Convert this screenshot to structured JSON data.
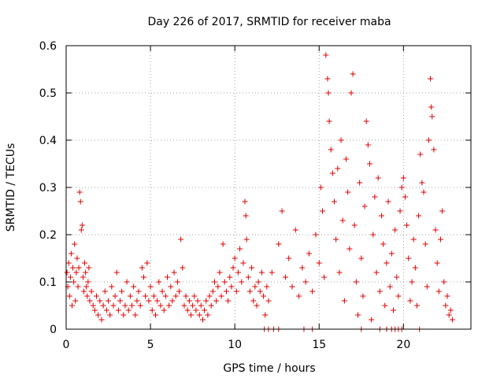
{
  "chart_data": {
    "type": "scatter",
    "title": "Day 226 of 2017, SRMTID for receiver maba",
    "xlabel": "GPS time / hours",
    "ylabel": "SRMTID / TECUs",
    "xlim": [
      0,
      24
    ],
    "ylim": [
      0,
      0.6
    ],
    "xticks": [
      0,
      5,
      10,
      15,
      20
    ],
    "yticks": [
      0,
      0.1,
      0.2,
      0.3,
      0.4,
      0.5,
      0.6
    ],
    "xtick_labels": [
      "0",
      "5",
      "10",
      "15",
      "20"
    ],
    "ytick_labels": [
      "0",
      "0.1",
      "0.2",
      "0.3",
      "0.4",
      "0.5",
      "0.6"
    ],
    "grid": true,
    "marker": "+",
    "color": "#e00000",
    "series": [
      {
        "points": [
          [
            0.05,
            0.12
          ],
          [
            0.1,
            0.09
          ],
          [
            0.15,
            0.14
          ],
          [
            0.2,
            0.07
          ],
          [
            0.25,
            0.11
          ],
          [
            0.3,
            0.16
          ],
          [
            0.35,
            0.05
          ],
          [
            0.4,
            0.13
          ],
          [
            0.45,
            0.1
          ],
          [
            0.5,
            0.18
          ],
          [
            0.55,
            0.06
          ],
          [
            0.6,
            0.12
          ],
          [
            0.65,
            0.15
          ],
          [
            0.7,
            0.09
          ],
          [
            0.75,
            0.13
          ],
          [
            0.8,
            0.29
          ],
          [
            0.85,
            0.27
          ],
          [
            0.9,
            0.21
          ],
          [
            0.95,
            0.22
          ],
          [
            1.0,
            0.11
          ],
          [
            1.05,
            0.08
          ],
          [
            1.1,
            0.14
          ],
          [
            1.15,
            0.12
          ],
          [
            1.2,
            0.09
          ],
          [
            1.25,
            0.07
          ],
          [
            1.3,
            0.1
          ],
          [
            1.35,
            0.13
          ],
          [
            1.4,
            0.06
          ],
          [
            1.5,
            0.08
          ],
          [
            1.6,
            0.05
          ],
          [
            1.7,
            0.04
          ],
          [
            1.8,
            0.07
          ],
          [
            1.9,
            0.03
          ],
          [
            2.0,
            0.06
          ],
          [
            2.1,
            0.02
          ],
          [
            2.2,
            0.05
          ],
          [
            2.3,
            0.08
          ],
          [
            2.4,
            0.04
          ],
          [
            2.5,
            0.06
          ],
          [
            2.6,
            0.03
          ],
          [
            2.7,
            0.09
          ],
          [
            2.8,
            0.05
          ],
          [
            2.9,
            0.07
          ],
          [
            3.0,
            0.12
          ],
          [
            3.1,
            0.04
          ],
          [
            3.2,
            0.06
          ],
          [
            3.3,
            0.08
          ],
          [
            3.4,
            0.03
          ],
          [
            3.5,
            0.05
          ],
          [
            3.6,
            0.1
          ],
          [
            3.7,
            0.04
          ],
          [
            3.8,
            0.07
          ],
          [
            3.9,
            0.05
          ],
          [
            4.0,
            0.09
          ],
          [
            4.1,
            0.03
          ],
          [
            4.2,
            0.06
          ],
          [
            4.3,
            0.08
          ],
          [
            4.4,
            0.05
          ],
          [
            4.5,
            0.13
          ],
          [
            4.6,
            0.11
          ],
          [
            4.7,
            0.07
          ],
          [
            4.8,
            0.14
          ],
          [
            4.9,
            0.06
          ],
          [
            5.0,
            0.09
          ],
          [
            5.1,
            0.04
          ],
          [
            5.2,
            0.07
          ],
          [
            5.3,
            0.03
          ],
          [
            5.4,
            0.06
          ],
          [
            5.5,
            0.1
          ],
          [
            5.6,
            0.05
          ],
          [
            5.7,
            0.08
          ],
          [
            5.8,
            0.04
          ],
          [
            5.9,
            0.07
          ],
          [
            6.0,
            0.11
          ],
          [
            6.1,
            0.05
          ],
          [
            6.2,
            0.09
          ],
          [
            6.3,
            0.06
          ],
          [
            6.4,
            0.12
          ],
          [
            6.5,
            0.07
          ],
          [
            6.6,
            0.1
          ],
          [
            6.7,
            0.08
          ],
          [
            6.8,
            0.19
          ],
          [
            6.9,
            0.13
          ],
          [
            7.0,
            0.05
          ],
          [
            7.1,
            0.07
          ],
          [
            7.2,
            0.04
          ],
          [
            7.3,
            0.06
          ],
          [
            7.4,
            0.03
          ],
          [
            7.5,
            0.05
          ],
          [
            7.6,
            0.07
          ],
          [
            7.7,
            0.04
          ],
          [
            7.8,
            0.06
          ],
          [
            7.9,
            0.03
          ],
          [
            8.0,
            0.05
          ],
          [
            8.1,
            0.02
          ],
          [
            8.2,
            0.04
          ],
          [
            8.3,
            0.06
          ],
          [
            8.4,
            0.03
          ],
          [
            8.5,
            0.07
          ],
          [
            8.6,
            0.05
          ],
          [
            8.7,
            0.08
          ],
          [
            8.8,
            0.1
          ],
          [
            8.9,
            0.06
          ],
          [
            9.0,
            0.09
          ],
          [
            9.1,
            0.12
          ],
          [
            9.2,
            0.07
          ],
          [
            9.3,
            0.18
          ],
          [
            9.4,
            0.1
          ],
          [
            9.5,
            0.08
          ],
          [
            9.6,
            0.06
          ],
          [
            9.7,
            0.11
          ],
          [
            9.8,
            0.09
          ],
          [
            9.9,
            0.13
          ],
          [
            10.0,
            0.15
          ],
          [
            10.1,
            0.08
          ],
          [
            10.2,
            0.12
          ],
          [
            10.3,
            0.17
          ],
          [
            10.4,
            0.1
          ],
          [
            10.5,
            0.14
          ],
          [
            10.6,
            0.27
          ],
          [
            10.65,
            0.24
          ],
          [
            10.7,
            0.19
          ],
          [
            10.8,
            0.11
          ],
          [
            10.9,
            0.08
          ],
          [
            11.0,
            0.13
          ],
          [
            11.1,
            0.06
          ],
          [
            11.2,
            0.09
          ],
          [
            11.3,
            0.05
          ],
          [
            11.4,
            0.1
          ],
          [
            11.5,
            0.08
          ],
          [
            11.6,
            0.12
          ],
          [
            11.7,
            0.07
          ],
          [
            11.8,
            0.03
          ],
          [
            11.9,
            0.09
          ],
          [
            12.0,
            0.06
          ],
          [
            12.2,
            0.12
          ],
          [
            12.6,
            0.18
          ],
          [
            12.8,
            0.25
          ],
          [
            13.0,
            0.11
          ],
          [
            13.2,
            0.15
          ],
          [
            13.4,
            0.09
          ],
          [
            13.6,
            0.21
          ],
          [
            13.8,
            0.07
          ],
          [
            14.0,
            0.13
          ],
          [
            14.2,
            0.1
          ],
          [
            14.4,
            0.16
          ],
          [
            14.6,
            0.08
          ],
          [
            14.8,
            0.2
          ],
          [
            15.0,
            0.14
          ],
          [
            15.1,
            0.3
          ],
          [
            15.2,
            0.25
          ],
          [
            15.3,
            0.11
          ],
          [
            15.4,
            0.58
          ],
          [
            15.5,
            0.53
          ],
          [
            15.55,
            0.5
          ],
          [
            15.6,
            0.44
          ],
          [
            15.7,
            0.38
          ],
          [
            15.8,
            0.33
          ],
          [
            15.9,
            0.27
          ],
          [
            16.0,
            0.19
          ],
          [
            16.1,
            0.34
          ],
          [
            16.2,
            0.12
          ],
          [
            16.3,
            0.4
          ],
          [
            16.4,
            0.23
          ],
          [
            16.5,
            0.06
          ],
          [
            16.6,
            0.36
          ],
          [
            16.7,
            0.29
          ],
          [
            16.8,
            0.17
          ],
          [
            16.9,
            0.5
          ],
          [
            17.0,
            0.54
          ],
          [
            17.1,
            0.22
          ],
          [
            17.2,
            0.1
          ],
          [
            17.3,
            0.03
          ],
          [
            17.4,
            0.31
          ],
          [
            17.5,
            0.15
          ],
          [
            17.6,
            0.07
          ],
          [
            17.7,
            0.26
          ],
          [
            17.8,
            0.44
          ],
          [
            17.9,
            0.39
          ],
          [
            18.0,
            0.35
          ],
          [
            18.1,
            0.02
          ],
          [
            18.2,
            0.2
          ],
          [
            18.3,
            0.28
          ],
          [
            18.4,
            0.12
          ],
          [
            18.5,
            0.32
          ],
          [
            18.6,
            0.08
          ],
          [
            18.7,
            0.24
          ],
          [
            18.8,
            0.18
          ],
          [
            18.9,
            0.05
          ],
          [
            19.0,
            0.14
          ],
          [
            19.1,
            0.27
          ],
          [
            19.2,
            0.09
          ],
          [
            19.3,
            0.16
          ],
          [
            19.4,
            0.04
          ],
          [
            19.5,
            0.21
          ],
          [
            19.6,
            0.11
          ],
          [
            19.7,
            0.07
          ],
          [
            19.8,
            0.25
          ],
          [
            19.9,
            0.3
          ],
          [
            20.0,
            0.32
          ],
          [
            20.1,
            0.28
          ],
          [
            20.2,
            0.22
          ],
          [
            20.3,
            0.15
          ],
          [
            20.4,
            0.06
          ],
          [
            20.5,
            0.1
          ],
          [
            20.6,
            0.19
          ],
          [
            20.7,
            0.13
          ],
          [
            20.8,
            0.05
          ],
          [
            20.9,
            0.24
          ],
          [
            21.0,
            0.37
          ],
          [
            21.1,
            0.31
          ],
          [
            21.2,
            0.29
          ],
          [
            21.3,
            0.18
          ],
          [
            21.4,
            0.09
          ],
          [
            21.5,
            0.4
          ],
          [
            21.6,
            0.53
          ],
          [
            21.65,
            0.47
          ],
          [
            21.7,
            0.45
          ],
          [
            21.8,
            0.38
          ],
          [
            21.9,
            0.21
          ],
          [
            22.0,
            0.14
          ],
          [
            22.1,
            0.08
          ],
          [
            22.2,
            0.19
          ],
          [
            22.3,
            0.25
          ],
          [
            22.4,
            0.1
          ],
          [
            22.5,
            0.05
          ],
          [
            22.6,
            0.07
          ],
          [
            22.7,
            0.03
          ],
          [
            22.8,
            0.04
          ],
          [
            22.9,
            0.02
          ],
          [
            11.75,
            0.0
          ],
          [
            12.0,
            0.0
          ],
          [
            12.3,
            0.0
          ],
          [
            12.6,
            0.0
          ],
          [
            14.1,
            0.0
          ],
          [
            14.6,
            0.0
          ],
          [
            17.5,
            0.0
          ],
          [
            18.6,
            0.0
          ],
          [
            19.0,
            0.0
          ],
          [
            19.3,
            0.0
          ],
          [
            19.5,
            0.0
          ],
          [
            19.7,
            0.0
          ],
          [
            19.9,
            0.0
          ],
          [
            20.95,
            0.0
          ]
        ]
      }
    ]
  }
}
